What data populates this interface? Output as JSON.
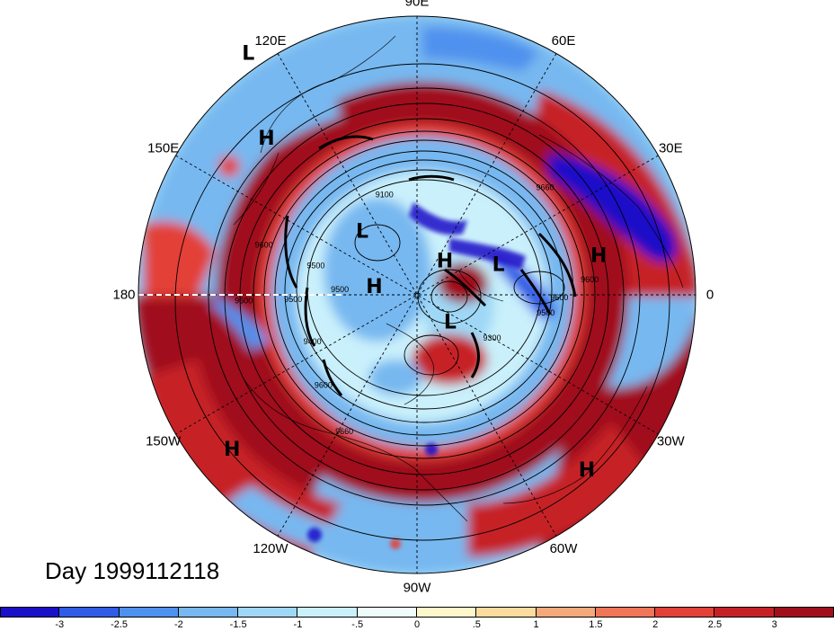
{
  "title": "Day 1999112118",
  "longitude_labels": [
    {
      "text": "90E",
      "lon": 90
    },
    {
      "text": "60E",
      "lon": 60
    },
    {
      "text": "30E",
      "lon": 30
    },
    {
      "text": "0",
      "lon": 0
    },
    {
      "text": "30W",
      "lon": -30
    },
    {
      "text": "60W",
      "lon": -60
    },
    {
      "text": "90W",
      "lon": -90
    },
    {
      "text": "120W",
      "lon": -120
    },
    {
      "text": "150W",
      "lon": -150
    },
    {
      "text": "180",
      "lon": 180
    },
    {
      "text": "150E",
      "lon": 150
    },
    {
      "text": "120E",
      "lon": 120
    }
  ],
  "pressure_systems": [
    {
      "type": "H",
      "text": "H",
      "lon": 134,
      "lat": 20
    },
    {
      "type": "L",
      "text": "L",
      "lon": 125,
      "lat": -5
    },
    {
      "type": "H",
      "text": "H",
      "lon": 12,
      "lat": 30
    },
    {
      "type": "H",
      "text": "H",
      "lon": -140,
      "lat": 12
    },
    {
      "type": "H",
      "text": "H",
      "lon": -46,
      "lat": 11
    },
    {
      "type": "L",
      "text": "L",
      "lon": 131,
      "lat": 63
    },
    {
      "type": "H",
      "text": "H",
      "lon": 170,
      "lat": 76
    },
    {
      "type": "H",
      "text": "H",
      "lon": 50,
      "lat": 76
    },
    {
      "type": "L",
      "text": "L",
      "lon": 20,
      "lat": 62
    },
    {
      "type": "L",
      "text": "L",
      "lon": -40,
      "lat": 76
    }
  ],
  "contour_labels": [
    {
      "text": "9660",
      "lon": 40,
      "lat": 36
    },
    {
      "text": "9100",
      "lon": 108,
      "lat": 56
    },
    {
      "text": "9600",
      "lon": 162,
      "lat": 38
    },
    {
      "text": "9500",
      "lon": 164,
      "lat": 56
    },
    {
      "text": "9600",
      "lon": -178,
      "lat": 34
    },
    {
      "text": "9500",
      "lon": -178,
      "lat": 50
    },
    {
      "text": "9500",
      "lon": 176,
      "lat": 65
    },
    {
      "text": "9400",
      "lon": -156,
      "lat": 53
    },
    {
      "text": "9600",
      "lon": -136,
      "lat": 48
    },
    {
      "text": "9660",
      "lon": -118,
      "lat": 40
    },
    {
      "text": "9300",
      "lon": -30,
      "lat": 62
    },
    {
      "text": "9500",
      "lon": -8,
      "lat": 48
    },
    {
      "text": "9600",
      "lon": -1,
      "lat": 44
    },
    {
      "text": "9600",
      "lon": 5,
      "lat": 34
    }
  ],
  "colorbar": {
    "colors": [
      "#1a10c8",
      "#2f5be6",
      "#4f91ee",
      "#77b8f0",
      "#9fd8f6",
      "#c9f0fb",
      "#eefcfc",
      "#fff7cc",
      "#fbdc9e",
      "#f4a97a",
      "#ef7656",
      "#e34038",
      "#c62027",
      "#a0101a"
    ],
    "labels": [
      "-3",
      "-2.5",
      "-2",
      "-1.5",
      "-1",
      "-.5",
      "0",
      ".5",
      "1",
      "1.5",
      "2",
      "2.5",
      "3"
    ]
  },
  "colors": {
    "strong_positive": "#a0101a",
    "positive": "#e34038",
    "neutral": "#eefcfc",
    "negative": "#77b8f0",
    "strong_negative": "#1a10c8"
  }
}
